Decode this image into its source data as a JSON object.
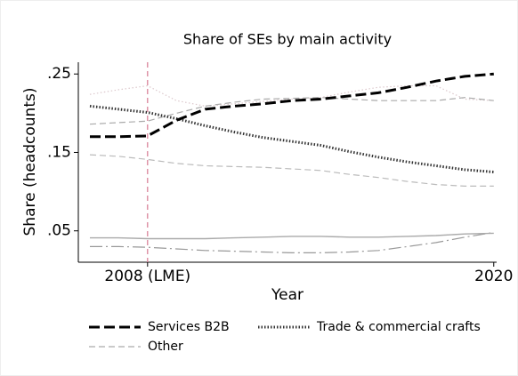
{
  "chart_data": {
    "type": "line",
    "title": "Share of SEs by main activity",
    "xlabel": "Year",
    "ylabel": "Share (headcounts)",
    "x": [
      2006,
      2007,
      2008,
      2009,
      2010,
      2011,
      2012,
      2013,
      2014,
      2015,
      2016,
      2017,
      2018,
      2019,
      2020
    ],
    "xlim": [
      2005.6,
      2020.1
    ],
    "xticks": [
      {
        "value": 2008,
        "label": "2008 (LME)"
      },
      2020
    ],
    "ylim": [
      0.01,
      0.265
    ],
    "yticks": [
      {
        "value": 0.05,
        "label": ".05"
      },
      {
        "value": 0.15,
        "label": ".15"
      },
      {
        "value": 0.25,
        "label": ".25"
      }
    ],
    "vline": {
      "value": 2008,
      "color": "#d9849a"
    },
    "series": [
      {
        "name": "Services B2B",
        "color": "#000000",
        "style": "bold-dash",
        "values": [
          0.17,
          0.17,
          0.171,
          0.191,
          0.205,
          0.209,
          0.212,
          0.216,
          0.218,
          0.222,
          0.226,
          0.233,
          0.241,
          0.247,
          0.25
        ]
      },
      {
        "name": "Trade & commercial crafts",
        "color": "#333333",
        "style": "bold-dot",
        "values": [
          0.209,
          0.205,
          0.201,
          0.193,
          0.184,
          0.176,
          0.169,
          0.164,
          0.159,
          0.151,
          0.144,
          0.138,
          0.133,
          0.128,
          0.125
        ]
      },
      {
        "name": "Other",
        "color": "#aaaaaa",
        "style": "dash",
        "values": [
          0.186,
          0.188,
          0.19,
          0.2,
          0.209,
          0.214,
          0.218,
          0.219,
          0.22,
          0.218,
          0.216,
          0.216,
          0.216,
          0.22,
          0.216
        ]
      },
      {
        "color": "#dcc8cc",
        "style": "dot",
        "values": [
          0.224,
          0.23,
          0.235,
          0.216,
          0.209,
          0.212,
          0.215,
          0.218,
          0.22,
          0.227,
          0.233,
          0.235,
          0.235,
          0.218,
          0.216
        ]
      },
      {
        "color": "#bbbbbb",
        "style": "dash",
        "values": [
          0.147,
          0.145,
          0.141,
          0.136,
          0.133,
          0.132,
          0.131,
          0.129,
          0.127,
          0.122,
          0.118,
          0.113,
          0.109,
          0.107,
          0.107
        ]
      },
      {
        "color": "#aaaaaa",
        "style": "solid",
        "values": [
          0.041,
          0.041,
          0.04,
          0.04,
          0.04,
          0.041,
          0.042,
          0.043,
          0.043,
          0.042,
          0.042,
          0.043,
          0.044,
          0.046,
          0.047
        ]
      },
      {
        "color": "#999999",
        "style": "longdash",
        "values": [
          0.03,
          0.03,
          0.029,
          0.027,
          0.025,
          0.024,
          0.023,
          0.022,
          0.022,
          0.023,
          0.025,
          0.03,
          0.035,
          0.042,
          0.048
        ]
      }
    ]
  }
}
